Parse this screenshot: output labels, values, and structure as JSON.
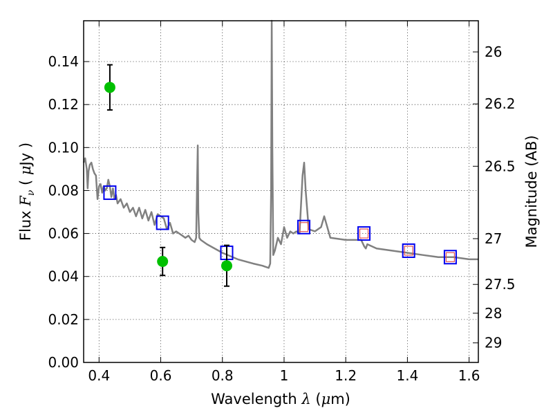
{
  "chart_data": {
    "type": "scatter",
    "title": "",
    "xlabel_parts": [
      "Wavelength  ",
      "λ",
      " (",
      "μ",
      "m)"
    ],
    "ylabel_parts": [
      "Flux  ",
      "F",
      "ν",
      "  ( ",
      "μ",
      "Jy )"
    ],
    "y2label": "Magnitude (AB)",
    "xlim": [
      0.35,
      1.63
    ],
    "ylim": [
      0.0,
      0.159
    ],
    "xticks": [
      0.4,
      0.6,
      0.8,
      1.0,
      1.2,
      1.4,
      1.6
    ],
    "xtick_labels": [
      "0.4",
      "0.6",
      "0.8",
      "1",
      "1.2",
      "1.4",
      "1.6"
    ],
    "yticks": [
      0.0,
      0.02,
      0.04,
      0.06,
      0.08,
      0.1,
      0.12,
      0.14
    ],
    "ytick_labels": [
      "0.00",
      "0.02",
      "0.04",
      "0.06",
      "0.08",
      "0.10",
      "0.12",
      "0.14"
    ],
    "y2ticks": [
      {
        "label": "26",
        "flux": 0.1445
      },
      {
        "label": "26.2",
        "flux": 0.1203
      },
      {
        "label": "26.5",
        "flux": 0.0913
      },
      {
        "label": "27",
        "flux": 0.0576
      },
      {
        "label": "27.5",
        "flux": 0.0363
      },
      {
        "label": "28",
        "flux": 0.0229
      },
      {
        "label": "29",
        "flux": 0.0091
      }
    ],
    "grid": true,
    "colors": {
      "model": "#808080",
      "observed": "#00c000",
      "model_box": "#0000ee",
      "model_box_inner": "#e05050",
      "errorbar": "#000000"
    },
    "series": [
      {
        "kind": "line",
        "x": [
          0.35,
          0.355,
          0.36,
          0.363,
          0.366,
          0.37,
          0.375,
          0.38,
          0.385,
          0.39,
          0.395,
          0.4,
          0.405,
          0.41,
          0.415,
          0.42,
          0.425,
          0.43,
          0.435,
          0.44,
          0.445,
          0.45,
          0.455,
          0.46,
          0.47,
          0.48,
          0.49,
          0.5,
          0.51,
          0.52,
          0.53,
          0.54,
          0.55,
          0.56,
          0.57,
          0.58,
          0.59,
          0.6,
          0.61,
          0.62,
          0.63,
          0.64,
          0.65,
          0.66,
          0.67,
          0.68,
          0.69,
          0.7,
          0.71,
          0.715,
          0.718,
          0.72,
          0.722,
          0.725,
          0.73,
          0.75,
          0.8,
          0.85,
          0.9,
          0.93,
          0.95,
          0.955,
          0.958,
          0.96,
          0.962,
          0.965,
          0.97,
          0.98,
          0.99,
          1.0,
          1.01,
          1.02,
          1.03,
          1.04,
          1.05,
          1.06,
          1.065,
          1.07,
          1.08,
          1.1,
          1.12,
          1.13,
          1.15,
          1.2,
          1.25,
          1.26,
          1.265,
          1.27,
          1.3,
          1.35,
          1.4,
          1.45,
          1.5,
          1.55,
          1.6,
          1.63
        ],
        "y": [
          0.093,
          0.095,
          0.09,
          0.081,
          0.089,
          0.092,
          0.093,
          0.09,
          0.088,
          0.087,
          0.076,
          0.082,
          0.083,
          0.079,
          0.082,
          0.08,
          0.081,
          0.085,
          0.082,
          0.077,
          0.081,
          0.076,
          0.078,
          0.074,
          0.076,
          0.072,
          0.074,
          0.07,
          0.072,
          0.068,
          0.072,
          0.067,
          0.071,
          0.066,
          0.07,
          0.064,
          0.069,
          0.068,
          0.067,
          0.062,
          0.065,
          0.06,
          0.061,
          0.06,
          0.059,
          0.058,
          0.059,
          0.057,
          0.056,
          0.058,
          0.085,
          0.101,
          0.07,
          0.058,
          0.057,
          0.055,
          0.051,
          0.048,
          0.046,
          0.045,
          0.044,
          0.046,
          0.08,
          0.159,
          0.1,
          0.05,
          0.052,
          0.058,
          0.055,
          0.063,
          0.058,
          0.061,
          0.06,
          0.061,
          0.06,
          0.087,
          0.093,
          0.08,
          0.062,
          0.061,
          0.063,
          0.068,
          0.058,
          0.057,
          0.057,
          0.054,
          0.053,
          0.055,
          0.053,
          0.052,
          0.051,
          0.05,
          0.049,
          0.049,
          0.048,
          0.048
        ]
      },
      {
        "kind": "model-photometry",
        "x": [
          0.435,
          0.606,
          0.814,
          1.064,
          1.259,
          1.404,
          1.539
        ],
        "y": [
          0.079,
          0.065,
          0.051,
          0.063,
          0.06,
          0.052,
          0.049
        ],
        "inner_box": [
          false,
          false,
          false,
          true,
          true,
          true,
          true
        ]
      },
      {
        "kind": "observed-errorbar",
        "x": [
          0.435,
          0.606,
          0.814
        ],
        "y": [
          0.128,
          0.047,
          0.045
        ],
        "yerr": [
          0.0105,
          0.0065,
          0.0095
        ]
      }
    ]
  }
}
